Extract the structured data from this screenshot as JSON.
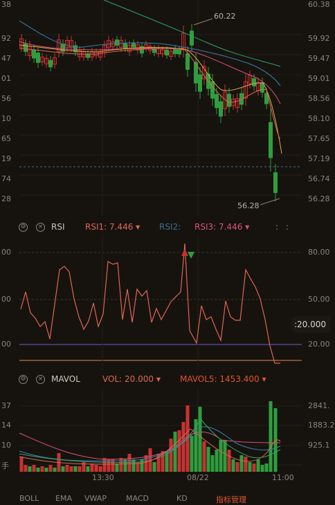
{
  "price_axis_right": [
    "60.38",
    "59.92",
    "59.47",
    "59.01",
    "58.56",
    "58.10",
    "57.65",
    "57.19",
    "56.74",
    "56.28"
  ],
  "price_axis_left": [
    "38",
    "92",
    "47",
    "01",
    "56",
    "10",
    "65",
    "19",
    "74",
    "28"
  ],
  "price_annotations": {
    "high": "60.22",
    "low": "56.28"
  },
  "rsi_header": {
    "name": "RSI",
    "rsi1": "RSI1: 7.446",
    "rsi2": "RSI2:",
    "rsi3": "RSI3: 7.446",
    "more": ":"
  },
  "rsi_axis_right": [
    "80.00",
    "50.00",
    "20.00"
  ],
  "rsi_axis_left": [
    "00",
    "00",
    "00"
  ],
  "rsi_crosshair_value": ":20.000",
  "vol_header": {
    "name": "MAVOL",
    "vol": "VOL: 20.000",
    "mavol5": "MAVOL5: 1453.400"
  },
  "vol_axis_right": [
    "2841.",
    "1883.2",
    "925.1"
  ],
  "vol_axis_left": [
    "37",
    "14",
    "10",
    "手"
  ],
  "time_axis": [
    "13:30",
    "08/22",
    "11:00"
  ],
  "tabs": [
    "BOLL",
    "EMA",
    "VWAP",
    "MACD",
    "KD",
    "指标管理"
  ],
  "colors": {
    "up": "#c83131",
    "down": "#2e9e3e",
    "rsi1": "#e06650",
    "rsi2": "#3a6f8c",
    "rsi3": "#d8517a",
    "mavol": "#e0552f",
    "dashed": "#3a6f8c"
  }
}
